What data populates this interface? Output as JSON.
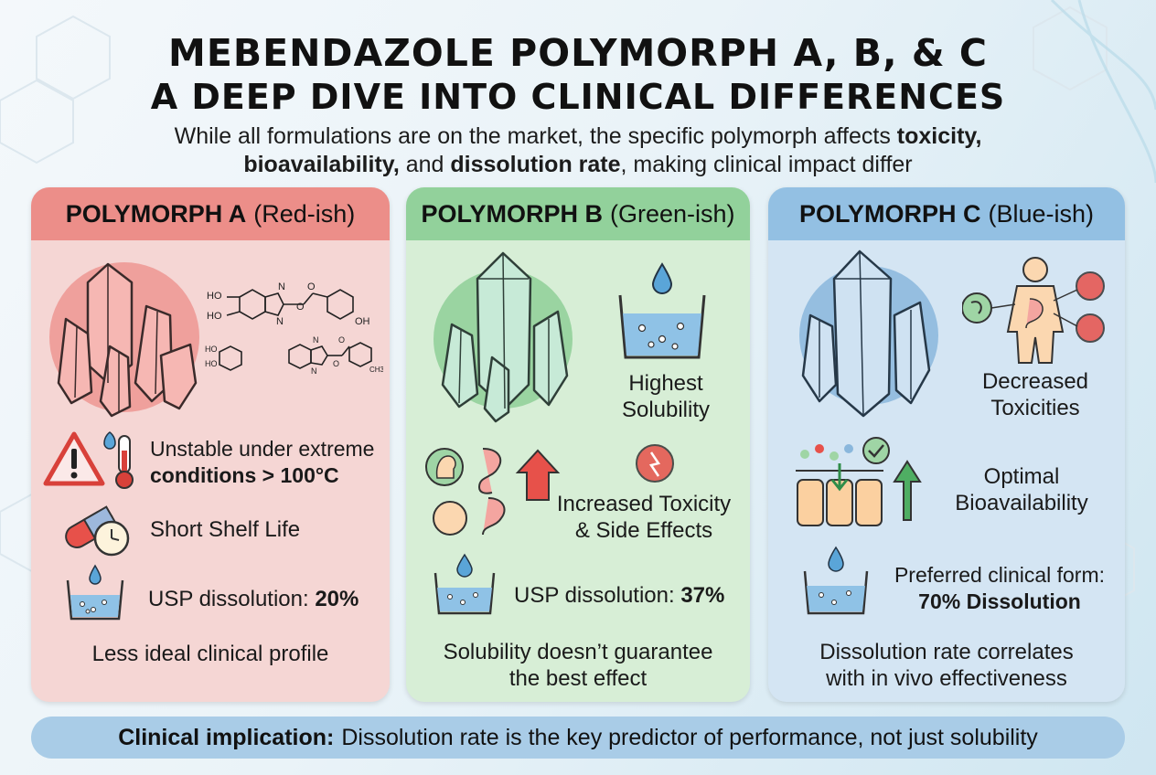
{
  "header": {
    "title_line1": "MEBENDAZOLE POLYMORPH A, B, & C",
    "title_line2": "A DEEP DIVE INTO CLINICAL DIFFERENCES",
    "subtitle_part1": "While all formulations are on the market, the specific polymorph affects ",
    "subtitle_bold1": "toxicity,",
    "subtitle_bold2": "bioavailability,",
    "subtitle_part2": " and ",
    "subtitle_bold3": "dissolution rate",
    "subtitle_part3": ", making clinical impact differ"
  },
  "cards": {
    "a": {
      "name": "POLYMORPH A",
      "color_label": "(Red-ish)",
      "accent": "#ec8e89",
      "stability_text": "Unstable under extreme",
      "stability_bold": "conditions > 100°C",
      "shelf_life": "Short Shelf Life",
      "dissolution_label": "USP dissolution: ",
      "dissolution_value": "20%",
      "summary": "Less ideal clinical profile",
      "chem_labels": [
        "HO",
        "HO",
        "N",
        "N",
        "O",
        "O",
        "OH",
        "HO",
        "HO",
        "N",
        "N",
        "O",
        "O",
        "CH3"
      ]
    },
    "b": {
      "name": "POLYMORPH B",
      "color_label": "(Green-ish)",
      "accent": "#92d19b",
      "solubility_line1": "Highest",
      "solubility_line2": "Solubility",
      "toxicity_line1": "Increased Toxicity",
      "toxicity_line2": "& Side Effects",
      "dissolution_label": "USP dissolution: ",
      "dissolution_value": "37%",
      "summary_line1": "Solubility doesn’t guarantee",
      "summary_line2": "the best effect"
    },
    "c": {
      "name": "POLYMORPH C",
      "color_label": "(Blue-ish)",
      "accent": "#93c0e3",
      "toxicity_line1": "Decreased",
      "toxicity_line2": "Toxicities",
      "bio_line1": "Optimal",
      "bio_line2": "Bioavailability",
      "preferred_line1": "Preferred clinical form:",
      "preferred_line2": "70% Dissolution",
      "summary_line1": "Dissolution rate correlates",
      "summary_line2": "with in vivo effectiveness"
    }
  },
  "footer": {
    "bold": "Clinical implication:",
    "text": "Dissolution rate is the key predictor of performance, not just solubility"
  },
  "icons": {
    "crystal": "crystal-icon",
    "warning": "warning-icon",
    "thermometer": "thermometer-icon",
    "pill_clock": "pill-clock-icon",
    "beaker": "beaker-icon",
    "drop": "drop-icon",
    "arrow_up": "arrow-up-icon",
    "body": "human-body-icon"
  }
}
